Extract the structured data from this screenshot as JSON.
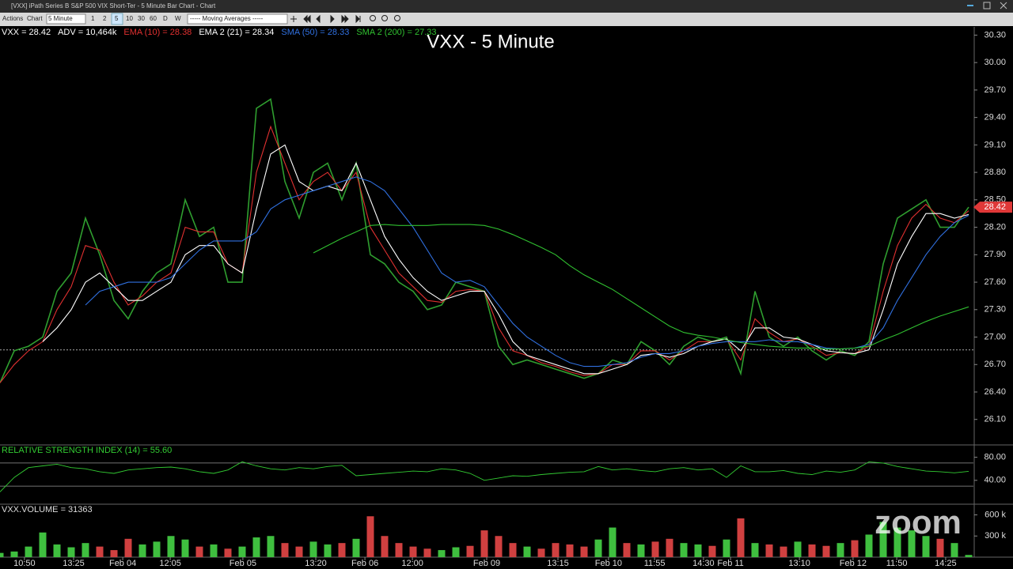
{
  "window": {
    "title": "[VXX] iPath Series B S&P 500 VIX Short-Ter - 5 Minute Bar Chart - Chart"
  },
  "toolbar": {
    "menus": [
      "Actions",
      "Chart"
    ],
    "interval": "5 Minute",
    "intervals": [
      "1",
      "2",
      "5",
      "10",
      "30",
      "60",
      "D",
      "W"
    ],
    "study": "----- Moving Averages -----"
  },
  "watermark": "zoom",
  "chart_data": [
    {
      "type": "line",
      "title": "VXX - 5 Minute",
      "legend": [
        {
          "text": "VXX = 28.42",
          "color": "#ffffff"
        },
        {
          "text": "ADV = 10,464k",
          "color": "#ffffff"
        },
        {
          "text": "EMA (10) = 28.38",
          "color": "#e03030"
        },
        {
          "text": "EMA 2 (21) = 28.34",
          "color": "#ffffff"
        },
        {
          "text": "SMA (50) = 28.33",
          "color": "#3070e0"
        },
        {
          "text": "SMA 2 (200) = 27.33",
          "color": "#30c030"
        }
      ],
      "last_price": 28.42,
      "reference_line": 26.86,
      "x": [
        0,
        6,
        12,
        18,
        24,
        30,
        36,
        42,
        48,
        54,
        60,
        66,
        72,
        78,
        84,
        90,
        96,
        102,
        108,
        114,
        120,
        126,
        132,
        138,
        144,
        150,
        156,
        162,
        168,
        174,
        180,
        186,
        192,
        198,
        204,
        210,
        216,
        222,
        228,
        234,
        240,
        246,
        252,
        258,
        264,
        270,
        276,
        282,
        288,
        294,
        300,
        306,
        312,
        318,
        324,
        330,
        336,
        342,
        348,
        354,
        360,
        366,
        372,
        378,
        384,
        390,
        396,
        402,
        408
      ],
      "xlim": [
        0,
        410
      ],
      "xticks": [
        {
          "value": 10.3,
          "label": "10:50"
        },
        {
          "value": 31,
          "label": "13:25"
        },
        {
          "value": 51.7,
          "label": "Feb 04"
        },
        {
          "value": 71.7,
          "label": "12:05"
        },
        {
          "value": 102.3,
          "label": "Feb 05"
        },
        {
          "value": 133,
          "label": "13:20"
        },
        {
          "value": 153.7,
          "label": "Feb 06"
        },
        {
          "value": 173.7,
          "label": "12:00"
        },
        {
          "value": 205,
          "label": "Feb 09"
        },
        {
          "value": 235,
          "label": "13:15"
        },
        {
          "value": 256.3,
          "label": "Feb 10"
        },
        {
          "value": 275.7,
          "label": "11:55"
        },
        {
          "value": 296.3,
          "label": "14:30"
        },
        {
          "value": 307.7,
          "label": "Feb 11"
        },
        {
          "value": 336.7,
          "label": "13:10"
        },
        {
          "value": 359.3,
          "label": "Feb 12"
        },
        {
          "value": 377.7,
          "label": "11:50"
        },
        {
          "value": 398.3,
          "label": "14:25"
        }
      ],
      "ylim": [
        25.83,
        30.39
      ],
      "yticks": [
        {
          "value": 26.1,
          "label": "26.10"
        },
        {
          "value": 26.4,
          "label": "26.40"
        },
        {
          "value": 26.7,
          "label": "26.70"
        },
        {
          "value": 27,
          "label": "27.00"
        },
        {
          "value": 27.3,
          "label": "27.30"
        },
        {
          "value": 27.6,
          "label": "27.60"
        },
        {
          "value": 27.9,
          "label": "27.90"
        },
        {
          "value": 28.2,
          "label": "28.20"
        },
        {
          "value": 28.5,
          "label": "28.50"
        },
        {
          "value": 28.8,
          "label": "28.80"
        },
        {
          "value": 29.1,
          "label": "29.10"
        },
        {
          "value": 29.4,
          "label": "29.40"
        },
        {
          "value": 29.7,
          "label": "29.70"
        },
        {
          "value": 30,
          "label": "30.00"
        },
        {
          "value": 30.3,
          "label": "30.30"
        }
      ],
      "series": [
        {
          "color": "#2f9e2f",
          "values": [
            26.5,
            26.85,
            26.9,
            27.0,
            27.5,
            27.7,
            28.3,
            27.9,
            27.4,
            27.2,
            27.5,
            27.7,
            27.8,
            28.5,
            28.1,
            28.2,
            27.6,
            27.6,
            29.5,
            29.6,
            28.7,
            28.3,
            28.8,
            28.9,
            28.5,
            28.9,
            27.9,
            27.8,
            27.6,
            27.5,
            27.3,
            27.35,
            27.6,
            27.55,
            27.5,
            26.9,
            26.7,
            26.75,
            26.7,
            26.65,
            26.6,
            26.55,
            26.6,
            26.75,
            26.7,
            26.95,
            26.85,
            26.7,
            26.9,
            27.0,
            26.95,
            27.0,
            26.6,
            27.5,
            27.0,
            26.9,
            27.0,
            26.85,
            26.75,
            26.85,
            26.8,
            26.95,
            27.8,
            28.3,
            28.4,
            28.5,
            28.2,
            28.2,
            28.42
          ]
        },
        {
          "color": "#e03030",
          "values": [
            26.5,
            26.7,
            26.85,
            26.95,
            27.3,
            27.55,
            28.0,
            27.95,
            27.6,
            27.35,
            27.45,
            27.6,
            27.7,
            28.2,
            28.15,
            28.15,
            27.8,
            27.7,
            28.8,
            29.3,
            28.9,
            28.5,
            28.7,
            28.8,
            28.6,
            28.8,
            28.2,
            27.95,
            27.7,
            27.55,
            27.4,
            27.38,
            27.5,
            27.52,
            27.5,
            27.1,
            26.85,
            26.8,
            26.72,
            26.68,
            26.62,
            26.58,
            26.6,
            26.7,
            26.7,
            26.85,
            26.85,
            26.75,
            26.85,
            26.95,
            26.95,
            26.98,
            26.75,
            27.2,
            27.05,
            26.95,
            26.98,
            26.9,
            26.8,
            26.83,
            26.82,
            26.9,
            27.5,
            28.0,
            28.3,
            28.45,
            28.3,
            28.25,
            28.38
          ]
        },
        {
          "color": "#ffffff",
          "values": [
            null,
            null,
            null,
            26.95,
            27.1,
            27.3,
            27.6,
            27.7,
            27.55,
            27.4,
            27.4,
            27.5,
            27.6,
            27.9,
            28.0,
            28.0,
            27.8,
            27.7,
            28.4,
            29.0,
            29.1,
            28.7,
            28.6,
            28.65,
            28.6,
            28.9,
            28.5,
            28.1,
            27.85,
            27.65,
            27.5,
            27.4,
            27.45,
            27.5,
            27.5,
            27.25,
            26.95,
            26.8,
            26.75,
            26.7,
            26.65,
            26.6,
            26.6,
            26.65,
            26.7,
            26.8,
            26.82,
            26.78,
            26.82,
            26.9,
            26.95,
            26.98,
            26.85,
            27.1,
            27.1,
            27.0,
            26.98,
            26.92,
            26.85,
            26.83,
            26.82,
            26.86,
            27.3,
            27.8,
            28.1,
            28.35,
            28.35,
            28.3,
            28.34
          ]
        },
        {
          "color": "#3070e0",
          "values": [
            null,
            null,
            null,
            null,
            null,
            null,
            27.35,
            27.5,
            27.55,
            27.6,
            27.6,
            27.6,
            27.65,
            27.8,
            27.95,
            28.05,
            28.05,
            28.05,
            28.15,
            28.4,
            28.5,
            28.55,
            28.6,
            28.65,
            28.7,
            28.75,
            28.7,
            28.6,
            28.4,
            28.2,
            27.95,
            27.7,
            27.6,
            27.62,
            27.55,
            27.35,
            27.15,
            27.0,
            26.9,
            26.8,
            26.72,
            26.68,
            26.68,
            26.7,
            26.72,
            26.78,
            26.82,
            26.82,
            26.85,
            26.9,
            26.93,
            26.95,
            26.95,
            26.95,
            26.97,
            26.95,
            26.95,
            26.92,
            26.88,
            26.87,
            26.88,
            26.92,
            27.1,
            27.4,
            27.65,
            27.9,
            28.1,
            28.25,
            28.33
          ]
        },
        {
          "color": "#30c030",
          "values": [
            null,
            null,
            null,
            null,
            null,
            null,
            null,
            null,
            null,
            null,
            null,
            null,
            null,
            null,
            null,
            null,
            null,
            null,
            null,
            null,
            null,
            null,
            27.92,
            28.0,
            28.08,
            28.15,
            28.22,
            28.23,
            28.22,
            28.22,
            28.22,
            28.23,
            28.23,
            28.23,
            28.22,
            28.18,
            28.12,
            28.05,
            27.98,
            27.9,
            27.78,
            27.68,
            27.6,
            27.52,
            27.42,
            27.32,
            27.22,
            27.12,
            27.05,
            27.02,
            27.0,
            26.97,
            26.94,
            26.92,
            26.9,
            26.89,
            26.88,
            26.88,
            26.87,
            26.87,
            26.88,
            26.9,
            26.97,
            27.03,
            27.1,
            27.17,
            27.23,
            27.28,
            27.33
          ]
        }
      ]
    },
    {
      "type": "line",
      "title": "RELATIVE STRENGTH INDEX (14) = 55.60",
      "color": "#33cc33",
      "ylim": [
        0,
        100
      ],
      "yticks": [
        {
          "value": 80,
          "label": "80.00"
        },
        {
          "value": 40,
          "label": "40.00"
        }
      ],
      "levels": [
        70,
        30
      ],
      "values": [
        20,
        45,
        62,
        65,
        68,
        62,
        60,
        55,
        52,
        58,
        60,
        62,
        63,
        60,
        55,
        52,
        58,
        72,
        65,
        60,
        58,
        62,
        60,
        64,
        66,
        48,
        50,
        52,
        54,
        56,
        55,
        60,
        58,
        52,
        40,
        44,
        48,
        47,
        50,
        52,
        54,
        55,
        64,
        58,
        60,
        57,
        55,
        60,
        62,
        58,
        60,
        45,
        65,
        55,
        55,
        57,
        52,
        50,
        56,
        54,
        58,
        72,
        70,
        64,
        60,
        56,
        55,
        53,
        55.6
      ]
    },
    {
      "type": "bar",
      "title": "VXX.VOLUME = 31363",
      "ylim": [
        0,
        740000
      ],
      "yticks": [
        {
          "value": 600000,
          "label": "600 k"
        },
        {
          "value": 300000,
          "label": "300 k"
        }
      ],
      "values": [
        60000,
        80000,
        150000,
        350000,
        180000,
        140000,
        200000,
        150000,
        100000,
        260000,
        180000,
        220000,
        300000,
        250000,
        150000,
        180000,
        120000,
        150000,
        280000,
        300000,
        200000,
        150000,
        220000,
        180000,
        200000,
        260000,
        580000,
        300000,
        200000,
        150000,
        120000,
        100000,
        140000,
        160000,
        380000,
        300000,
        200000,
        150000,
        120000,
        200000,
        180000,
        150000,
        250000,
        420000,
        200000,
        180000,
        220000,
        260000,
        200000,
        180000,
        160000,
        250000,
        550000,
        200000,
        180000,
        150000,
        220000,
        180000,
        160000,
        200000,
        240000,
        320000,
        500000,
        420000,
        380000,
        300000,
        260000,
        200000,
        31363
      ]
    }
  ]
}
